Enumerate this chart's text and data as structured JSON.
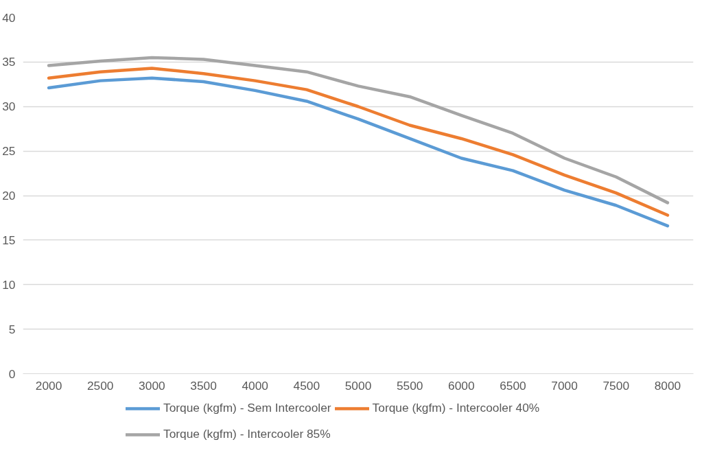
{
  "chart_data": {
    "type": "line",
    "categories": [
      "2000",
      "2500",
      "3000",
      "3500",
      "4000",
      "4500",
      "5000",
      "5500",
      "6000",
      "6500",
      "7000",
      "7500",
      "8000"
    ],
    "ylim": [
      0,
      40
    ],
    "yticks": [
      0,
      5,
      10,
      15,
      20,
      25,
      30,
      35,
      40
    ],
    "grid": "y",
    "legend": "bottom",
    "marker": "none",
    "line_style": "solid",
    "series": [
      {
        "name": "Torque (kgfm) - Sem Intercooler",
        "color": "#5b9bd5",
        "values": [
          32.1,
          32.9,
          33.2,
          32.8,
          31.8,
          30.6,
          28.6,
          26.4,
          24.2,
          22.8,
          20.6,
          18.9,
          16.6
        ]
      },
      {
        "name": "Torque (kgfm) - Intercooler 40%",
        "color": "#ed7d31",
        "values": [
          33.2,
          33.9,
          34.3,
          33.7,
          32.9,
          31.9,
          30.0,
          27.9,
          26.4,
          24.6,
          22.3,
          20.3,
          17.8
        ]
      },
      {
        "name": "Torque (kgfm) - Intercooler 85%",
        "color": "#a5a5a5",
        "values": [
          34.6,
          35.1,
          35.5,
          35.3,
          34.6,
          33.9,
          32.3,
          31.1,
          29.0,
          27.0,
          24.2,
          22.1,
          19.2
        ]
      }
    ]
  }
}
